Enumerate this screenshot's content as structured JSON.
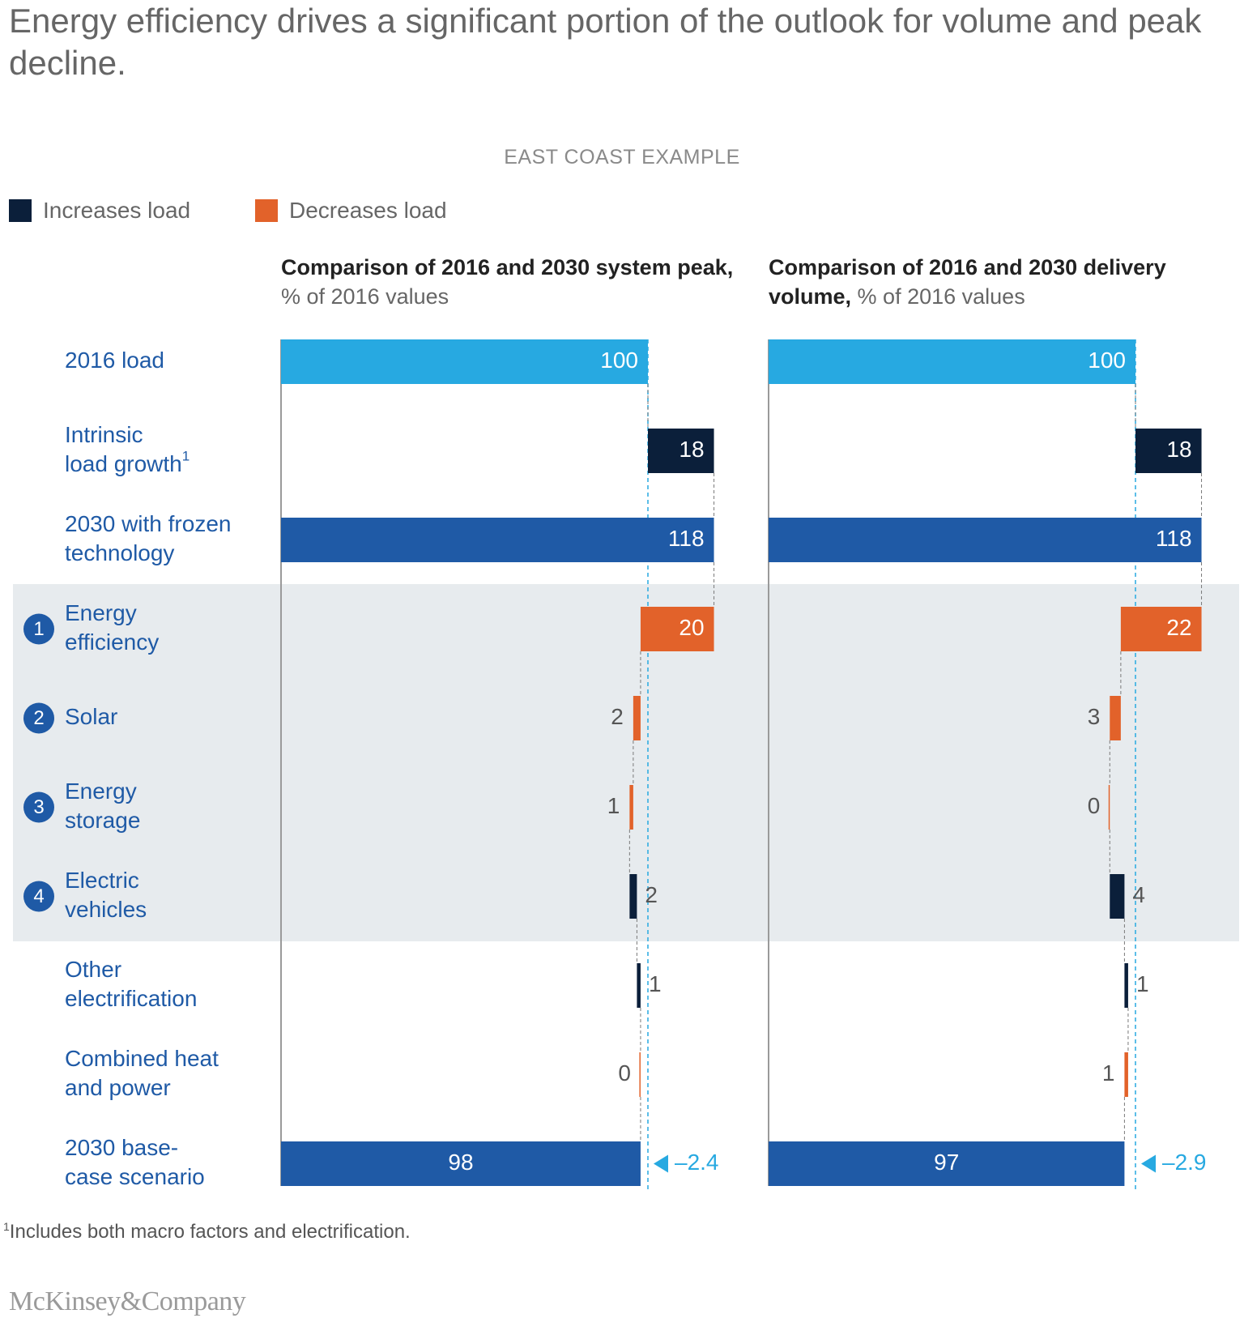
{
  "title": "Energy efficiency drives a significant portion of the outlook for volume and peak decline.",
  "subtitle": "EAST COAST EXAMPLE",
  "legend": [
    {
      "label": "Increases load",
      "color": "#0b1f3a"
    },
    {
      "label": "Decreases load",
      "color": "#e2622a"
    }
  ],
  "colors": {
    "baseline": "#27a9e1",
    "total": "#1f5aa6",
    "increase": "#0b1f3a",
    "decrease": "#e2622a",
    "label": "#1f5aa6",
    "highlight_band": "#e7ebee",
    "delta": "#27a9e1"
  },
  "panels": [
    {
      "title_bold": "Comparison of 2016 and 2030 system peak,",
      "title_unit": "% of 2016 values"
    },
    {
      "title_bold": "Comparison of 2016 and 2030 delivery volume,",
      "title_unit": "% of 2016 values"
    }
  ],
  "footnote": {
    "marker": "1",
    "text": "Includes both macro factors and electrification."
  },
  "brand": "McKinsey&Company",
  "chart_data": [
    {
      "type": "bar",
      "subtype": "waterfall",
      "title": "Comparison of 2016 and 2030 system peak, % of 2016 values",
      "categories": [
        "2016 load",
        "Intrinsic load growth",
        "2030 with frozen technology",
        "Energy efficiency",
        "Solar",
        "Energy storage",
        "Electric vehicles",
        "Other electrification",
        "Combined heat and power",
        "2030 base-case scenario"
      ],
      "values": [
        100,
        18,
        118,
        20,
        2,
        1,
        2,
        1,
        0,
        98
      ],
      "labels": [
        "100",
        "18",
        "118",
        "20",
        "2",
        "1",
        "2",
        "1",
        "0",
        "98"
      ],
      "kinds": [
        "base",
        "increase",
        "total",
        "decrease",
        "decrease",
        "decrease",
        "increase",
        "increase",
        "decrease",
        "total"
      ],
      "delta_label": "–2.4",
      "xlim": [
        0,
        120
      ]
    },
    {
      "type": "bar",
      "subtype": "waterfall",
      "title": "Comparison of 2016 and 2030 delivery volume, % of 2016 values",
      "categories": [
        "2016 load",
        "Intrinsic load growth",
        "2030 with frozen technology",
        "Energy efficiency",
        "Solar",
        "Energy storage",
        "Electric vehicles",
        "Other electrification",
        "Combined heat and power",
        "2030 base-case scenario"
      ],
      "values": [
        100,
        18,
        118,
        22,
        3,
        0,
        4,
        1,
        1,
        97
      ],
      "labels": [
        "100",
        "18",
        "118",
        "22",
        "3",
        "0",
        "4",
        "1",
        "1",
        "97"
      ],
      "kinds": [
        "base",
        "increase",
        "total",
        "decrease",
        "decrease",
        "decrease",
        "increase",
        "increase",
        "decrease",
        "total"
      ],
      "delta_label": "–2.9",
      "xlim": [
        0,
        120
      ]
    }
  ],
  "rows": [
    {
      "line1": "2016 load",
      "line2": "",
      "badge": "",
      "sup": ""
    },
    {
      "line1": "Intrinsic",
      "line2": "load growth",
      "badge": "",
      "sup": "1"
    },
    {
      "line1": "2030 with frozen",
      "line2": "technology",
      "badge": "",
      "sup": ""
    },
    {
      "line1": "Energy",
      "line2": "efficiency",
      "badge": "1",
      "sup": ""
    },
    {
      "line1": "Solar",
      "line2": "",
      "badge": "2",
      "sup": ""
    },
    {
      "line1": "Energy",
      "line2": "storage",
      "badge": "3",
      "sup": ""
    },
    {
      "line1": "Electric",
      "line2": "vehicles",
      "badge": "4",
      "sup": ""
    },
    {
      "line1": "Other",
      "line2": "electrification",
      "badge": "",
      "sup": ""
    },
    {
      "line1": "Combined heat",
      "line2": "and power",
      "badge": "",
      "sup": ""
    },
    {
      "line1": "2030 base-",
      "line2": "case scenario",
      "badge": "",
      "sup": ""
    }
  ]
}
